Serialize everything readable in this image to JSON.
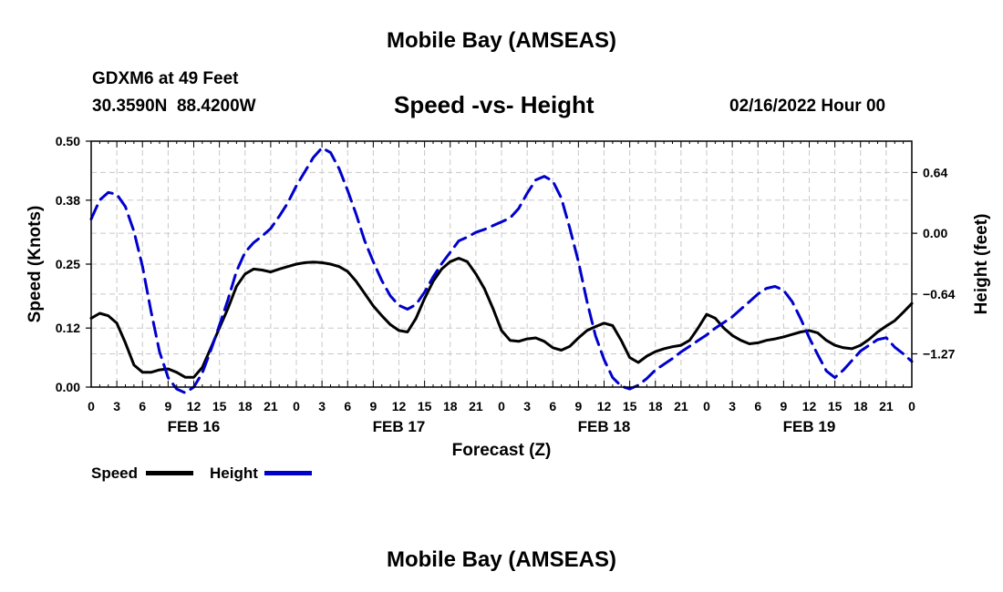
{
  "page": {
    "title": "Mobile Bay (AMSEAS)",
    "footer_title": "Mobile Bay (AMSEAS)"
  },
  "station": {
    "line1": "GDXM6 at 49 Feet",
    "coords": "30.3590N  88.4200W"
  },
  "chart_title": "Speed -vs- Height",
  "timestamp": "02/16/2022 Hour 00",
  "chart_data": {
    "type": "line",
    "title": "Speed -vs- Height",
    "xlabel": "Forecast (Z)",
    "ylabel": "Speed (Knots)",
    "y2label": "Height (feet)",
    "xlim": [
      0,
      96
    ],
    "ylim": [
      0,
      0.5
    ],
    "y2lim": [
      -1.62,
      0.97
    ],
    "yticks": [
      0.0,
      0.12,
      0.25,
      0.38,
      0.5
    ],
    "ytick_labels": [
      "0.00",
      "0.12",
      "0.25",
      "0.38",
      "0.50"
    ],
    "y2ticks": [
      -1.27,
      -0.64,
      0.0,
      0.64
    ],
    "y2tick_labels": [
      "−1.27",
      "−0.64",
      "0.00",
      "0.64"
    ],
    "xtick_hours": [
      0,
      3,
      6,
      9,
      12,
      15,
      18,
      21,
      24,
      27,
      30,
      33,
      36,
      39,
      42,
      45,
      48,
      51,
      54,
      57,
      60,
      63,
      66,
      69,
      72,
      75,
      78,
      81,
      84,
      87,
      90,
      93,
      96
    ],
    "xtick_labels": [
      "0",
      "3",
      "6",
      "9",
      "12",
      "15",
      "18",
      "21",
      "0",
      "3",
      "6",
      "9",
      "12",
      "15",
      "18",
      "21",
      "0",
      "3",
      "6",
      "9",
      "12",
      "15",
      "18",
      "21",
      "0",
      "3",
      "6",
      "9",
      "12",
      "15",
      "18",
      "21",
      "0"
    ],
    "day_labels": [
      {
        "hour": 12,
        "label": "FEB 16"
      },
      {
        "hour": 36,
        "label": "FEB 17"
      },
      {
        "hour": 60,
        "label": "FEB 18"
      },
      {
        "hour": 84,
        "label": "FEB 19"
      }
    ],
    "grid": true,
    "series": [
      {
        "name": "Speed",
        "axis": "left",
        "color": "#000000",
        "dash": "solid",
        "x": [
          0,
          1,
          2,
          3,
          4,
          5,
          6,
          7,
          8,
          9,
          10,
          11,
          12,
          13,
          14,
          15,
          16,
          17,
          18,
          19,
          20,
          21,
          22,
          23,
          24,
          25,
          26,
          27,
          28,
          29,
          30,
          31,
          32,
          33,
          34,
          35,
          36,
          37,
          38,
          39,
          40,
          41,
          42,
          43,
          44,
          45,
          46,
          47,
          48,
          49,
          50,
          51,
          52,
          53,
          54,
          55,
          56,
          57,
          58,
          59,
          60,
          61,
          62,
          63,
          64,
          65,
          66,
          67,
          68,
          69,
          70,
          71,
          72,
          73,
          74,
          75,
          76,
          77,
          78,
          79,
          80,
          81,
          82,
          83,
          84,
          85,
          86,
          87,
          88,
          89,
          90,
          91,
          92,
          93,
          94,
          95,
          96
        ],
        "values": [
          0.14,
          0.15,
          0.145,
          0.13,
          0.09,
          0.045,
          0.03,
          0.03,
          0.035,
          0.037,
          0.03,
          0.02,
          0.02,
          0.04,
          0.08,
          0.12,
          0.16,
          0.205,
          0.23,
          0.24,
          0.238,
          0.234,
          0.24,
          0.245,
          0.25,
          0.253,
          0.254,
          0.253,
          0.25,
          0.245,
          0.235,
          0.215,
          0.19,
          0.165,
          0.145,
          0.127,
          0.115,
          0.112,
          0.14,
          0.18,
          0.215,
          0.24,
          0.255,
          0.262,
          0.255,
          0.23,
          0.2,
          0.16,
          0.115,
          0.095,
          0.093,
          0.098,
          0.1,
          0.093,
          0.08,
          0.075,
          0.083,
          0.1,
          0.115,
          0.123,
          0.13,
          0.125,
          0.095,
          0.06,
          0.05,
          0.063,
          0.072,
          0.078,
          0.082,
          0.085,
          0.095,
          0.12,
          0.148,
          0.14,
          0.12,
          0.105,
          0.095,
          0.088,
          0.09,
          0.095,
          0.098,
          0.102,
          0.107,
          0.112,
          0.115,
          0.11,
          0.095,
          0.085,
          0.08,
          0.078,
          0.085,
          0.097,
          0.112,
          0.124,
          0.135,
          0.152,
          0.17
        ]
      },
      {
        "name": "Height",
        "axis": "right",
        "color": "#0000cc",
        "dash": "dashed",
        "x": [
          0,
          1,
          2,
          3,
          4,
          5,
          6,
          7,
          8,
          9,
          10,
          11,
          12,
          13,
          14,
          15,
          16,
          17,
          18,
          19,
          20,
          21,
          22,
          23,
          24,
          25,
          26,
          27,
          28,
          29,
          30,
          31,
          32,
          33,
          34,
          35,
          36,
          37,
          38,
          39,
          40,
          41,
          42,
          43,
          44,
          45,
          46,
          47,
          48,
          49,
          50,
          51,
          52,
          53,
          54,
          55,
          56,
          57,
          58,
          59,
          60,
          61,
          62,
          63,
          64,
          65,
          66,
          67,
          68,
          69,
          70,
          71,
          72,
          73,
          74,
          75,
          76,
          77,
          78,
          79,
          80,
          81,
          82,
          83,
          84,
          85,
          86,
          87,
          88,
          89,
          90,
          91,
          92,
          93,
          94,
          95,
          96
        ],
        "values": [
          0.15,
          0.35,
          0.43,
          0.41,
          0.28,
          0.02,
          -0.35,
          -0.82,
          -1.25,
          -1.52,
          -1.64,
          -1.68,
          -1.62,
          -1.47,
          -1.23,
          -0.97,
          -0.7,
          -0.4,
          -0.2,
          -0.1,
          -0.03,
          0.05,
          0.18,
          0.32,
          0.5,
          0.65,
          0.8,
          0.9,
          0.85,
          0.68,
          0.45,
          0.2,
          -0.08,
          -0.3,
          -0.5,
          -0.66,
          -0.76,
          -0.8,
          -0.75,
          -0.62,
          -0.46,
          -0.32,
          -0.2,
          -0.08,
          -0.04,
          0.01,
          0.04,
          0.08,
          0.12,
          0.16,
          0.26,
          0.42,
          0.56,
          0.6,
          0.55,
          0.37,
          0.05,
          -0.3,
          -0.72,
          -1.08,
          -1.33,
          -1.52,
          -1.61,
          -1.64,
          -1.6,
          -1.53,
          -1.44,
          -1.38,
          -1.32,
          -1.25,
          -1.19,
          -1.13,
          -1.07,
          -1.0,
          -0.94,
          -0.88,
          -0.8,
          -0.72,
          -0.64,
          -0.58,
          -0.56,
          -0.6,
          -0.72,
          -0.9,
          -1.1,
          -1.28,
          -1.45,
          -1.52,
          -1.44,
          -1.34,
          -1.24,
          -1.18,
          -1.12,
          -1.1,
          -1.2,
          -1.27,
          -1.35
        ]
      }
    ]
  },
  "legend": {
    "speed_label": "Speed",
    "height_label": "Height"
  }
}
